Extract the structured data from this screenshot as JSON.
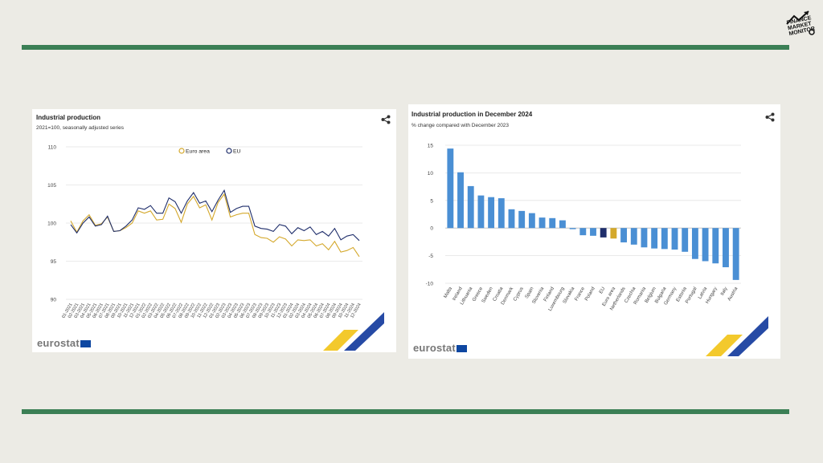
{
  "logo": {
    "text": [
      "FINANCE",
      "MARKET",
      "MONITOR"
    ]
  },
  "left_chart_meta": {
    "title": "Industrial production",
    "subtitle": "2021=100, seasonally adjusted series",
    "brand": "eurostat"
  },
  "right_chart_meta": {
    "title": "Industrial production in December 2024",
    "subtitle": "% change compared with December 2023",
    "brand": "eurostat"
  },
  "colors": {
    "stripe": "#3b7f55",
    "euro_area": "#d4a82b",
    "eu": "#1f2e6b",
    "bar": "#4a8fd4",
    "bar_eu": "#1f2e6b",
    "bar_euro": "#d4a82b"
  },
  "chart_data": [
    {
      "type": "line",
      "title": "Industrial production",
      "subtitle": "2021=100, seasonally adjusted series",
      "ylim": [
        90,
        110
      ],
      "yticks": [
        90,
        95,
        100,
        105,
        110
      ],
      "legend_position": "top-center",
      "x": [
        "01-2021",
        "02-2021",
        "03-2021",
        "04-2021",
        "05-2021",
        "06-2021",
        "07-2021",
        "08-2021",
        "09-2021",
        "10-2021",
        "11-2021",
        "12-2021",
        "01-2022",
        "02-2022",
        "03-2022",
        "04-2022",
        "05-2022",
        "06-2022",
        "07-2022",
        "08-2022",
        "09-2022",
        "10-2022",
        "11-2022",
        "12-2022",
        "01-2023",
        "02-2023",
        "03-2023",
        "04-2023",
        "05-2023",
        "06-2023",
        "07-2023",
        "08-2023",
        "09-2023",
        "10-2023",
        "11-2023",
        "12-2023",
        "01-2024",
        "02-2024",
        "03-2024",
        "04-2024",
        "05-2024",
        "06-2024",
        "07-2024",
        "08-2024",
        "09-2024",
        "10-2024",
        "11-2024",
        "12-2024"
      ],
      "series": [
        {
          "name": "Euro area",
          "values": [
            100.3,
            98.8,
            100.3,
            101.1,
            99.7,
            99.9,
            100.8,
            98.9,
            99.0,
            99.4,
            100.0,
            101.6,
            101.3,
            101.6,
            100.4,
            100.5,
            102.5,
            101.9,
            100.1,
            102.5,
            103.5,
            102.0,
            102.4,
            100.4,
            102.7,
            103.8,
            100.8,
            101.1,
            101.3,
            101.3,
            98.5,
            98.1,
            98.0,
            97.5,
            98.2,
            97.9,
            97.0,
            97.8,
            97.7,
            97.8,
            97.0,
            97.3,
            96.5,
            97.6,
            96.2,
            96.4,
            96.8,
            95.6
          ]
        },
        {
          "name": "EU",
          "values": [
            99.8,
            98.7,
            100.0,
            100.8,
            99.6,
            99.8,
            100.9,
            98.9,
            99.0,
            99.6,
            100.4,
            102.0,
            101.8,
            102.3,
            101.3,
            101.3,
            103.3,
            102.8,
            101.3,
            102.9,
            104.0,
            102.6,
            102.9,
            101.5,
            103.0,
            104.3,
            101.4,
            101.9,
            102.2,
            102.2,
            99.6,
            99.3,
            99.2,
            98.9,
            99.8,
            99.6,
            98.6,
            99.4,
            99.0,
            99.5,
            98.5,
            98.9,
            98.3,
            99.3,
            97.8,
            98.3,
            98.5,
            97.7
          ]
        }
      ]
    },
    {
      "type": "bar",
      "title": "Industrial production in December 2024",
      "subtitle": "% change compared with December 2023",
      "ylim": [
        -10,
        15
      ],
      "yticks": [
        -10,
        -5,
        0,
        5,
        10,
        15
      ],
      "categories": [
        "Malta",
        "Ireland",
        "Lithuania",
        "Greece",
        "Sweden",
        "Croatia",
        "Denmark",
        "Cyprus",
        "Spain",
        "Slovenia",
        "Finland",
        "Luxembourg",
        "Slovakia",
        "France",
        "Poland",
        "EU",
        "Euro area",
        "Netherlands",
        "Czechia",
        "Romania",
        "Belgium",
        "Bulgaria",
        "Germany",
        "Estonia",
        "Portugal",
        "Latvia",
        "Hungary",
        "Italy",
        "Austria"
      ],
      "values": [
        14.4,
        10.1,
        7.6,
        5.9,
        5.6,
        5.4,
        3.4,
        3.1,
        2.7,
        1.9,
        1.8,
        1.4,
        -0.2,
        -1.3,
        -1.4,
        -1.7,
        -1.9,
        -2.6,
        -3.0,
        -3.5,
        -3.7,
        -3.8,
        -3.9,
        -4.3,
        -5.6,
        -6.0,
        -6.4,
        -7.1,
        -9.4
      ]
    }
  ]
}
